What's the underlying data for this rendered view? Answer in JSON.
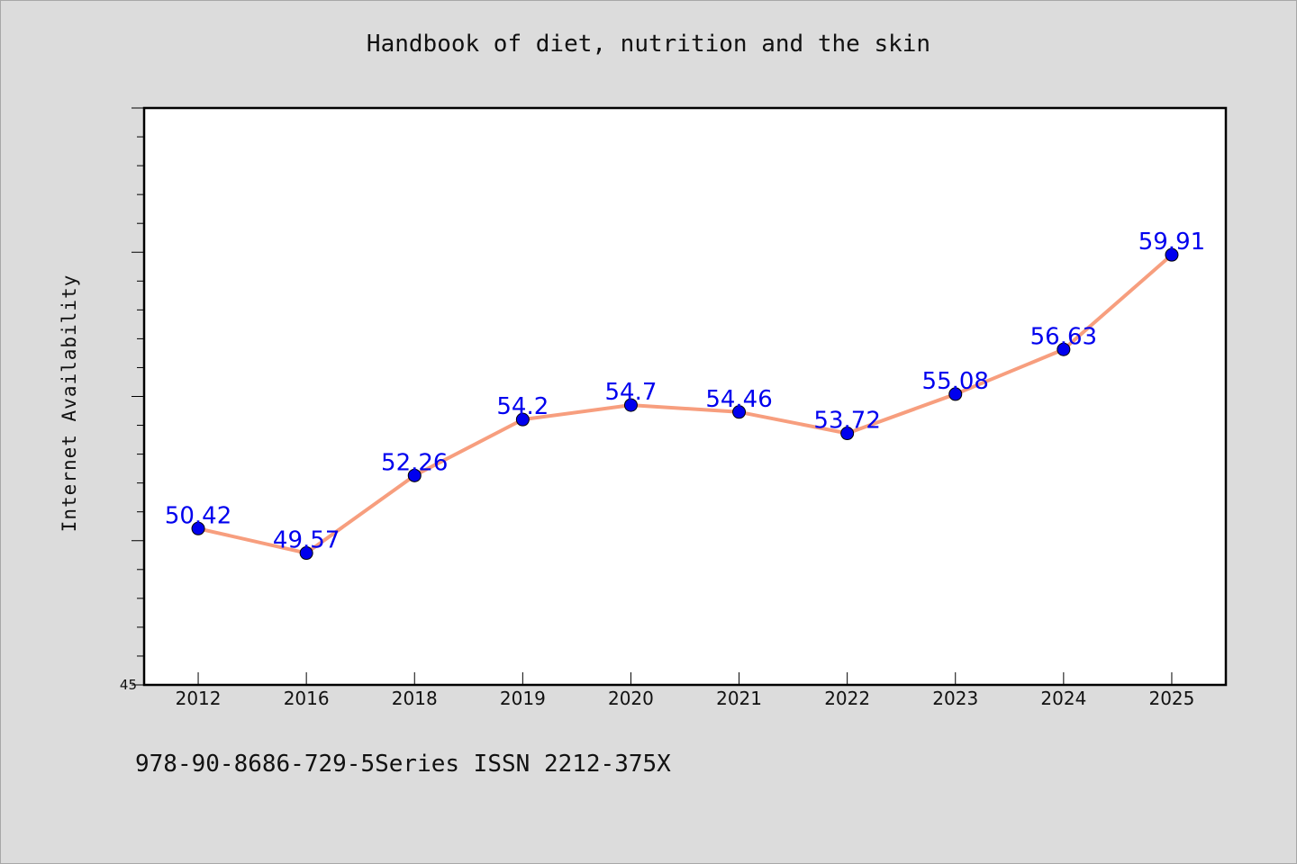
{
  "chart_data": {
    "type": "line",
    "title": "Handbook of diet, nutrition and the skin",
    "ylabel": "Internet Availability",
    "xlabel": "",
    "categories": [
      "2012",
      "2016",
      "2018",
      "2019",
      "2020",
      "2021",
      "2022",
      "2023",
      "2024",
      "2025"
    ],
    "series": [
      {
        "values": [
          50.42,
          49.57,
          52.26,
          54.2,
          54.7,
          54.46,
          53.72,
          55.08,
          56.63,
          59.91
        ],
        "color": "#f79e7e",
        "marker_color": "#0000ee"
      }
    ],
    "ylim": [
      45,
      65
    ],
    "y_tick_labels": [
      "45"
    ],
    "data_label_color": "#0000ee",
    "grid": false,
    "legend": "none"
  },
  "footer": {
    "text": "978-90-8686-729-5Series ISSN 2212-375X"
  }
}
